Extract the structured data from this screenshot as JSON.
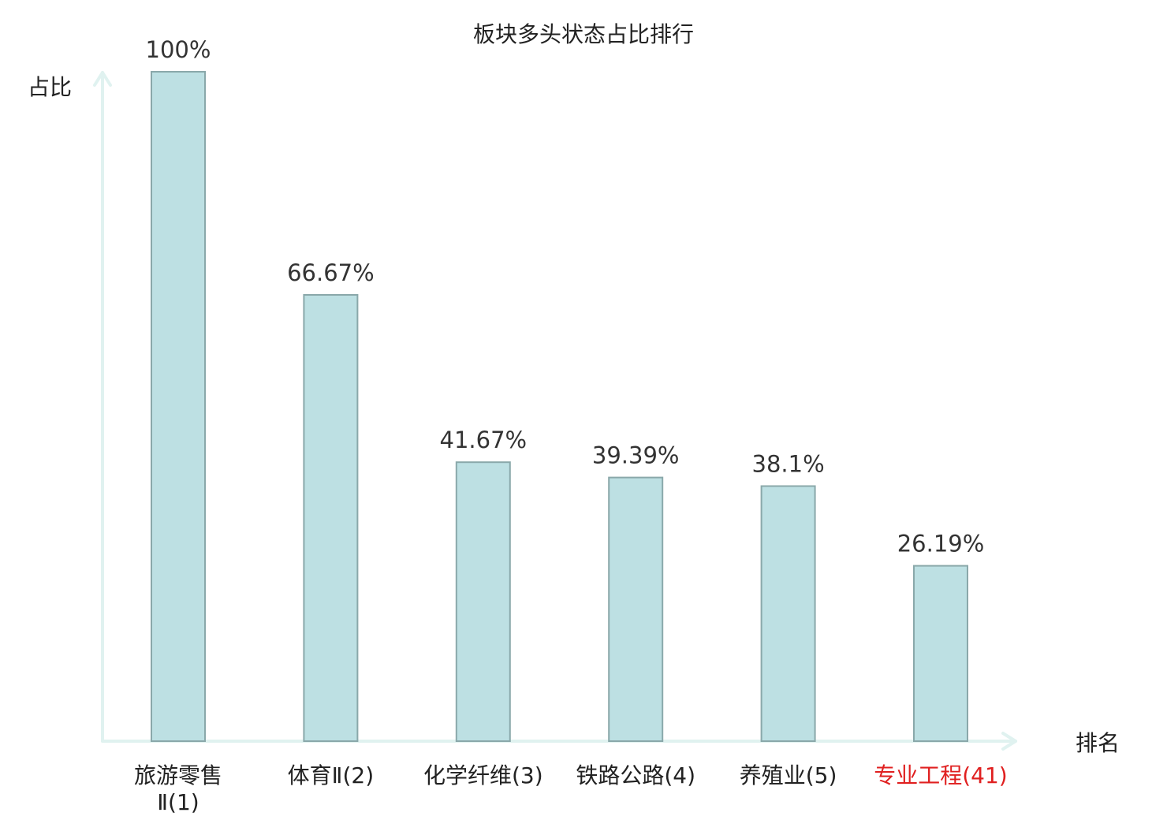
{
  "chart_data": {
    "type": "bar",
    "title": "板块多头状态占比排行",
    "ylabel": "占比",
    "xlabel": "排名",
    "ylim": [
      0,
      100
    ],
    "grid": false,
    "categories": [
      [
        "旅游零售",
        "Ⅱ(1)"
      ],
      [
        "体育Ⅱ(2)"
      ],
      [
        "化学纤维(3)"
      ],
      [
        "铁路公路(4)"
      ],
      [
        "养殖业(5)"
      ],
      [
        "专业工程(41)"
      ]
    ],
    "values": [
      100,
      66.67,
      41.67,
      39.39,
      38.1,
      26.19
    ],
    "value_labels": [
      "100%",
      "66.67%",
      "41.67%",
      "39.39%",
      "38.1%",
      "26.19%"
    ],
    "highlight_index": 5
  },
  "colors": {
    "bar_fill": "#bde0e3",
    "bar_stroke": "#8aa8aa",
    "axis": "#e0f2f0",
    "text": "#222222",
    "value_text": "#333333",
    "highlight": "#e02020"
  }
}
